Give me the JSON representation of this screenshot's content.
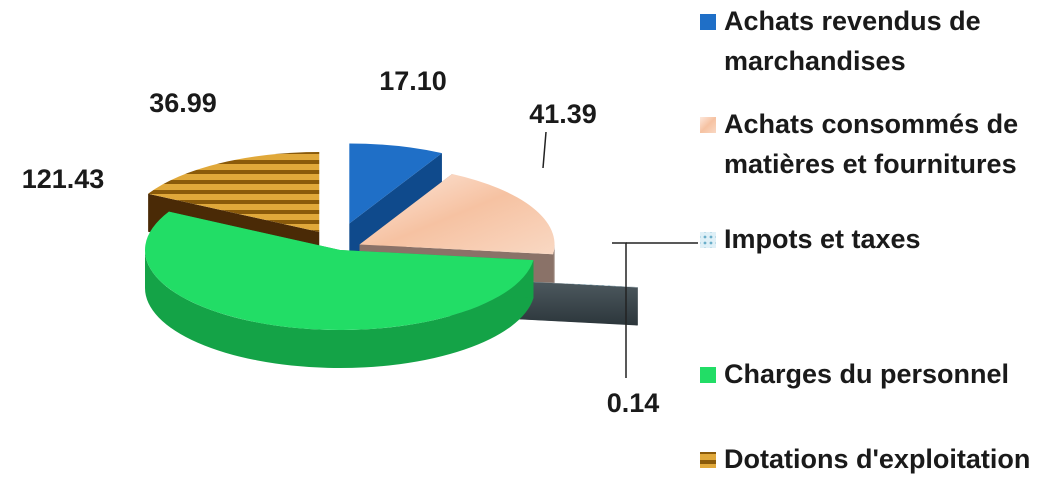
{
  "chart_data": {
    "type": "pie",
    "title": "",
    "style": "3d-exploded",
    "legend_position": "right",
    "slices": [
      {
        "label_lines": [
          "Achats revendus de",
          "marchandises"
        ],
        "value": 17.1,
        "value_text": "17.10",
        "color": "#1f6fc7",
        "side": "#0f4a8c",
        "pattern": "solid"
      },
      {
        "label_lines": [
          "Achats consommés de",
          "matières et fournitures"
        ],
        "value": 41.39,
        "value_text": "41.39",
        "color": "#f6c9ad",
        "side": "#8a7268",
        "pattern": "gradient"
      },
      {
        "label_lines": [
          "Impots et taxes"
        ],
        "value": 0.14,
        "value_text": "0.14",
        "color": "#b7dbe9",
        "side": "#3d4f57",
        "pattern": "dots"
      },
      {
        "label_lines": [
          "Charges du personnel"
        ],
        "value": 121.43,
        "value_text": "121.43",
        "color": "#22dd66",
        "side": "#14a347",
        "pattern": "solid"
      },
      {
        "label_lines": [
          "Dotations d'exploitation"
        ],
        "value": 36.99,
        "value_text": "36.99",
        "color": "#c98a18",
        "side": "#4a2a06",
        "pattern": "stripes"
      }
    ]
  }
}
